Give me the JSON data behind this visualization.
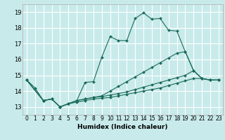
{
  "xlabel": "Humidex (Indice chaleur)",
  "bg_color": "#c8eaea",
  "grid_color": "#ffffff",
  "line_color": "#1a6b5a",
  "xlim": [
    -0.5,
    23.5
  ],
  "ylim": [
    12.5,
    19.5
  ],
  "yticks": [
    13,
    14,
    15,
    16,
    17,
    18,
    19
  ],
  "xticks": [
    0,
    1,
    2,
    3,
    4,
    5,
    6,
    7,
    8,
    9,
    10,
    11,
    12,
    13,
    14,
    15,
    16,
    17,
    18,
    19,
    20,
    21,
    22,
    23
  ],
  "lines": [
    {
      "x": [
        0,
        1,
        2,
        3,
        4,
        5,
        6,
        7,
        8,
        9,
        10,
        11,
        12,
        13,
        14,
        15,
        16,
        17,
        18,
        19,
        20,
        21,
        22,
        23
      ],
      "y": [
        14.7,
        14.2,
        13.4,
        13.5,
        13.0,
        13.2,
        13.4,
        14.55,
        14.6,
        16.15,
        17.45,
        17.2,
        17.2,
        18.6,
        18.95,
        18.55,
        18.6,
        17.85,
        17.8,
        16.5,
        15.3,
        14.8,
        14.7,
        14.7
      ]
    },
    {
      "x": [
        0,
        2,
        3,
        4,
        5,
        6,
        7,
        8,
        9,
        10,
        11,
        12,
        13,
        14,
        15,
        16,
        17,
        18,
        19,
        20,
        21,
        22,
        23
      ],
      "y": [
        14.7,
        13.4,
        13.5,
        13.0,
        13.2,
        13.4,
        13.5,
        13.6,
        13.7,
        14.0,
        14.3,
        14.6,
        14.9,
        15.2,
        15.5,
        15.8,
        16.1,
        16.4,
        16.5,
        15.3,
        14.8,
        14.7,
        14.7
      ]
    },
    {
      "x": [
        0,
        2,
        3,
        4,
        5,
        6,
        7,
        8,
        9,
        10,
        11,
        12,
        13,
        14,
        15,
        16,
        17,
        18,
        19,
        20,
        21,
        22,
        23
      ],
      "y": [
        14.7,
        13.4,
        13.5,
        13.0,
        13.2,
        13.4,
        13.5,
        13.6,
        13.65,
        13.75,
        13.85,
        13.95,
        14.1,
        14.25,
        14.4,
        14.55,
        14.7,
        14.85,
        15.0,
        15.3,
        14.8,
        14.7,
        14.7
      ]
    },
    {
      "x": [
        0,
        2,
        3,
        4,
        5,
        6,
        7,
        8,
        9,
        10,
        11,
        12,
        13,
        14,
        15,
        16,
        17,
        18,
        19,
        20,
        21,
        22,
        23
      ],
      "y": [
        14.7,
        13.4,
        13.5,
        13.0,
        13.2,
        13.3,
        13.4,
        13.5,
        13.55,
        13.6,
        13.7,
        13.8,
        13.9,
        14.0,
        14.1,
        14.2,
        14.35,
        14.5,
        14.65,
        14.8,
        14.8,
        14.7,
        14.7
      ]
    }
  ]
}
